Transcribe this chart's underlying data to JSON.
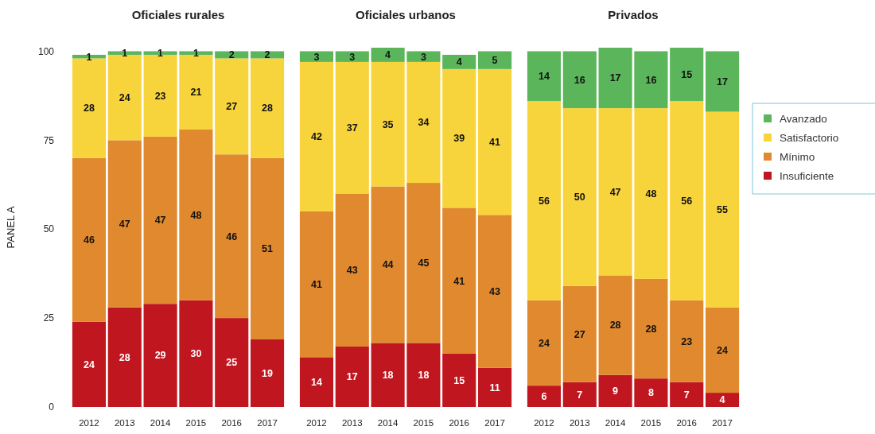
{
  "chart_data": [
    {
      "type": "bar",
      "title": "Oficiales rurales",
      "ylabel": "PANEL A",
      "stacked": true,
      "categories": [
        "2012",
        "2013",
        "2014",
        "2015",
        "2016",
        "2017"
      ],
      "ylim": [
        0,
        101
      ],
      "yticks": [
        0,
        25,
        50,
        75,
        100
      ],
      "data_labels": true,
      "legend": false,
      "series": [
        {
          "color": "#c0161f",
          "values": [
            24,
            28,
            29,
            30,
            25,
            19
          ]
        },
        {
          "color": "#e0892f",
          "values": [
            46,
            47,
            47,
            48,
            46,
            51
          ]
        },
        {
          "color": "#f8d43c",
          "values": [
            28,
            24,
            23,
            21,
            27,
            28
          ]
        },
        {
          "color": "#5bb55a",
          "values": [
            1,
            1,
            1,
            1,
            2,
            2
          ]
        }
      ]
    },
    {
      "type": "bar",
      "title": "Oficiales urbanos",
      "stacked": true,
      "categories": [
        "2012",
        "2013",
        "2014",
        "2015",
        "2016",
        "2017"
      ],
      "ylim": [
        0,
        101
      ],
      "tick_labels": "x",
      "data_labels": true,
      "legend": false,
      "series": [
        {
          "color": "#c0161f",
          "values": [
            14,
            17,
            18,
            18,
            15,
            11
          ]
        },
        {
          "color": "#e0892f",
          "values": [
            41,
            43,
            44,
            45,
            41,
            43
          ]
        },
        {
          "color": "#f8d43c",
          "values": [
            42,
            37,
            35,
            34,
            39,
            41
          ]
        },
        {
          "color": "#5bb55a",
          "values": [
            3,
            3,
            4,
            3,
            4,
            5
          ]
        }
      ]
    },
    {
      "type": "bar",
      "title": "Privados",
      "stacked": true,
      "categories": [
        "2012",
        "2013",
        "2014",
        "2015",
        "2016",
        "2017"
      ],
      "ylim": [
        0,
        101
      ],
      "tick_labels": "x",
      "data_labels": true,
      "legend": "right",
      "series": [
        {
          "name": "Insuficiente",
          "color": "#c0161f",
          "values": [
            6,
            7,
            9,
            8,
            7,
            4
          ]
        },
        {
          "name": "Mínimo",
          "color": "#e0892f",
          "values": [
            24,
            27,
            28,
            28,
            23,
            24
          ]
        },
        {
          "name": "Satisfactorio",
          "color": "#f8d43c",
          "values": [
            56,
            50,
            47,
            48,
            56,
            55
          ]
        },
        {
          "name": "Avanzado",
          "color": "#5bb55a",
          "values": [
            14,
            16,
            17,
            16,
            15,
            17
          ]
        }
      ]
    }
  ]
}
